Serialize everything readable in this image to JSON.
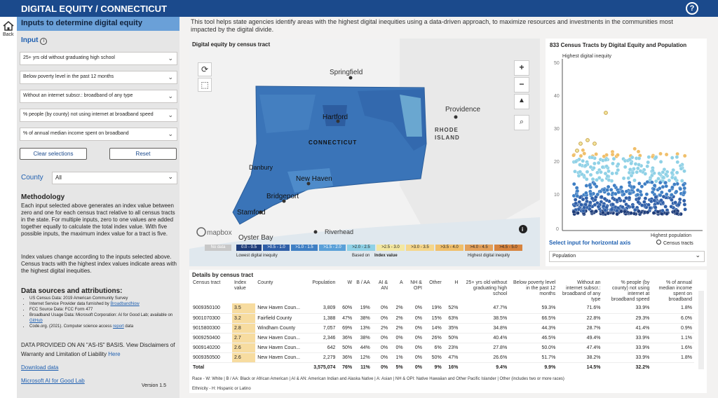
{
  "app": {
    "title": "DIGITAL EQUITY / CONNECTICUT",
    "help": "?",
    "back": "Back"
  },
  "left": {
    "header": "Inputs to determine digital equity",
    "input_label": "Input",
    "inputs": [
      "25+ yrs old without graduating high school",
      "Below poverty level in the past 12 months",
      "Without an internet subscr.: broadband of any type",
      "% people (by county) not using internet at broadband speed",
      "% of annual median income spent on broadband"
    ],
    "clear": "Clear selections",
    "reset": "Reset",
    "county_label": "County",
    "county_value": "All",
    "method_title": "Methodology",
    "method_text": "Each input selected above generates an index value between zero and one for each census tract relative to all census tracts in the state. For multiple inputs, zero to one values are added together equally to calculate the total index value. With five possible inputs, the maximum index value for a tract is five.",
    "index_text": "Index values change according to the inputs selected above. Census tracts with the highest index values indicate areas with the highest digital inequities.",
    "sources_title": "Data sources and attributions:",
    "sources": [
      {
        "text": "US Census Data: 2019 American Community Survey",
        "link": ""
      },
      {
        "text": "Internet Service Provider data furnished by",
        "link": "BroadbandNow"
      },
      {
        "text": "FCC Source Data: FCC Form 477",
        "link": ""
      },
      {
        "text": "Broadband Usage Data: Microsoft Corporation: AI for Good Lab; available on",
        "link": "GitHub"
      },
      {
        "text": "Code.org. (2021). Computer science access",
        "link": "report",
        "after": " data"
      }
    ],
    "asis": "DATA PROVIDED ON AN \"AS-IS\" BASIS. View Disclaimers of Warranty and Limitation of Liability",
    "asis_link": "Here",
    "download": "Download data",
    "ms": "Microsoft AI for Good Lab",
    "version": "Version 1.5"
  },
  "intro": "This tool helps state agencies identify areas with the highest digital inequities using a data-driven approach, to maximize resources and investments in the communities most impacted by the digital divide.",
  "map": {
    "title": "Digital equity by census tract",
    "labels": {
      "springfield": "Springfield",
      "providence": "Providence",
      "ri1": "RHODE",
      "ri2": "ISLAND",
      "hartford": "Hartford",
      "ct": "CONNECTICUT",
      "danbury": "Danbury",
      "newhaven": "New Haven",
      "bridgeport": "Bridgeport",
      "stamford": "Stamford",
      "oysterbay": "Oyster Bay",
      "riverhead": "Riverhead",
      "mapbox": "mapbox"
    },
    "legend": [
      "No data",
      "0.0 - 0.5",
      ">0.5 - 1.0",
      ">1.0 - 1.5",
      ">1.5 - 2.0",
      ">2.0 - 2.5",
      ">2.5 - 3.0",
      ">3.0 - 3.5",
      ">3.5 - 4.0",
      ">4.0 - 4.5",
      ">4.5 - 5.0"
    ],
    "legend_colors": [
      "#c8c8c8",
      "#1f3d7a",
      "#2f5fa8",
      "#3f7fc4",
      "#5aa0d8",
      "#8fd1e6",
      "#f3e7a0",
      "#f5d68a",
      "#f0bf6a",
      "#e3a05a",
      "#d7843f"
    ],
    "lowest": "Lowest digital inequity",
    "based": "Based on",
    "index": "Index value",
    "highest": "Highest digital inequity"
  },
  "scatter": {
    "title": "833 Census Tracts by Digital Equity and Population",
    "ylabel": "Highest digital inequity",
    "yticks": [
      "50",
      "40",
      "30",
      "20",
      "10",
      "0"
    ],
    "xlabel": "Highest population",
    "horiz": "Select input for horizontal axis",
    "legend": "Census tracts",
    "dropdown": "Population"
  },
  "details": {
    "title": "Details by census tract",
    "headers": [
      "Census tract",
      "Index value",
      "County",
      "Population",
      "W",
      "B / AA",
      "AI & AN",
      "A",
      "NH & OPI",
      "Other",
      "H",
      "25+ yrs old without graduating high school",
      "Below poverty level in the past 12 months",
      "Without an internet subscr.: broadband of any type",
      "% people (by county) not using internet at broadband speed",
      "% of annual median income spent on broadband"
    ],
    "rows": [
      [
        "9009350100",
        "3.5",
        "New Haven Coun...",
        "3,809",
        "60%",
        "19%",
        "0%",
        "2%",
        "0%",
        "19%",
        "52%",
        "47.7%",
        "59.3%",
        "71.6%",
        "33.9%",
        "1.8%"
      ],
      [
        "9001070300",
        "3.2",
        "Fairfield County",
        "1,388",
        "47%",
        "38%",
        "0%",
        "2%",
        "0%",
        "15%",
        "63%",
        "38.5%",
        "66.5%",
        "22.8%",
        "29.3%",
        "6.0%"
      ],
      [
        "9015800300",
        "2.8",
        "Windham County",
        "7,057",
        "69%",
        "13%",
        "2%",
        "2%",
        "0%",
        "14%",
        "35%",
        "34.8%",
        "44.3%",
        "28.7%",
        "41.4%",
        "0.9%"
      ],
      [
        "9009250400",
        "2.7",
        "New Haven Coun...",
        "2,346",
        "36%",
        "38%",
        "0%",
        "0%",
        "0%",
        "26%",
        "50%",
        "40.4%",
        "46.5%",
        "49.4%",
        "33.9%",
        "1.1%"
      ],
      [
        "9009140200",
        "2.6",
        "New Haven Coun...",
        "642",
        "50%",
        "44%",
        "0%",
        "0%",
        "0%",
        "6%",
        "23%",
        "27.8%",
        "50.0%",
        "47.4%",
        "33.9%",
        "1.6%"
      ],
      [
        "9009350500",
        "2.6",
        "New Haven Coun...",
        "2,279",
        "36%",
        "12%",
        "0%",
        "1%",
        "0%",
        "50%",
        "47%",
        "26.6%",
        "51.7%",
        "38.2%",
        "33.9%",
        "1.8%"
      ]
    ],
    "total": [
      "Total",
      "",
      "",
      "3,575,074",
      "76%",
      "11%",
      "0%",
      "5%",
      "0%",
      "9%",
      "16%",
      "9.4%",
      "9.9%",
      "14.5%",
      "32.2%",
      ""
    ],
    "footnote1": "Race  -  W: White | B / AA: Black or African American | AI & AN: American Indian and Alaska Native | A: Asian | NH & OPI: Native Hawaiian        and Other Pacific Islander | Other (includes two or more races)",
    "footnote2": "Ethnicity  -  H: Hispanic or Latino"
  }
}
